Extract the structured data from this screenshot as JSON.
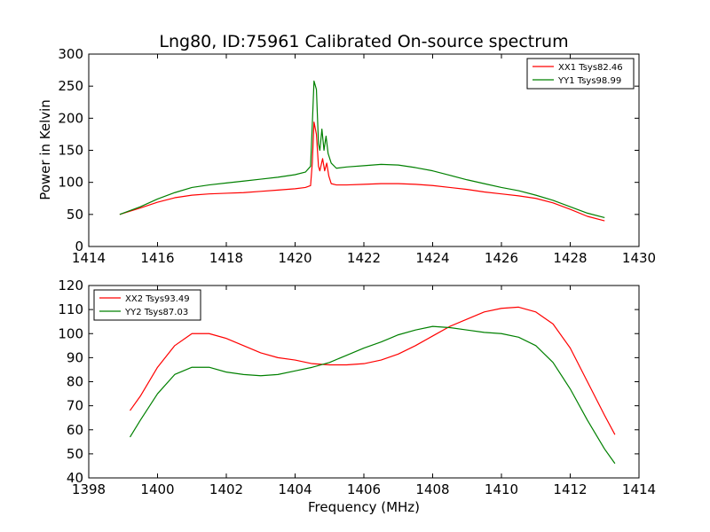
{
  "figure": {
    "title": "Lng80, ID:75961 Calibrated On-source spectrum",
    "ylabel": "Power in Kelvin",
    "xlabel": "Frequency (MHz)"
  },
  "chart_data": [
    {
      "type": "line",
      "title": "Lng80, ID:75961 Calibrated On-source spectrum",
      "xlabel": "",
      "ylabel": "Power in Kelvin",
      "xlim": [
        1414,
        1430
      ],
      "ylim": [
        0,
        300
      ],
      "xticks": [
        1414,
        1416,
        1418,
        1420,
        1422,
        1424,
        1426,
        1428,
        1430
      ],
      "yticks": [
        0,
        50,
        100,
        150,
        200,
        250,
        300
      ],
      "grid": false,
      "legend_position": "top-right",
      "series": [
        {
          "name": "XX1 Tsys82.46",
          "color": "#ff0000",
          "points": [
            [
              1414.9,
              50
            ],
            [
              1415.5,
              60
            ],
            [
              1416,
              69
            ],
            [
              1416.5,
              76
            ],
            [
              1417,
              80
            ],
            [
              1417.5,
              82
            ],
            [
              1418,
              83
            ],
            [
              1418.5,
              84
            ],
            [
              1419,
              86
            ],
            [
              1419.5,
              88
            ],
            [
              1420,
              90
            ],
            [
              1420.3,
              92
            ],
            [
              1420.45,
              95
            ],
            [
              1420.5,
              130
            ],
            [
              1420.55,
              194
            ],
            [
              1420.62,
              175
            ],
            [
              1420.68,
              125
            ],
            [
              1420.72,
              118
            ],
            [
              1420.8,
              137
            ],
            [
              1420.86,
              118
            ],
            [
              1420.92,
              130
            ],
            [
              1420.98,
              110
            ],
            [
              1421.05,
              98
            ],
            [
              1421.2,
              96
            ],
            [
              1421.5,
              96
            ],
            [
              1422,
              97
            ],
            [
              1422.5,
              98
            ],
            [
              1423,
              98
            ],
            [
              1423.5,
              97
            ],
            [
              1424,
              95
            ],
            [
              1424.5,
              92
            ],
            [
              1425,
              89
            ],
            [
              1425.5,
              85
            ],
            [
              1426,
              82
            ],
            [
              1426.5,
              79
            ],
            [
              1427,
              75
            ],
            [
              1427.5,
              68
            ],
            [
              1428,
              58
            ],
            [
              1428.5,
              47
            ],
            [
              1429,
              40
            ]
          ]
        },
        {
          "name": "YY1 Tsys98.99",
          "color": "#008000",
          "points": [
            [
              1414.9,
              50
            ],
            [
              1415.5,
              62
            ],
            [
              1416,
              74
            ],
            [
              1416.5,
              84
            ],
            [
              1417,
              92
            ],
            [
              1417.5,
              96
            ],
            [
              1418,
              99
            ],
            [
              1418.5,
              102
            ],
            [
              1419,
              105
            ],
            [
              1419.5,
              108
            ],
            [
              1420,
              112
            ],
            [
              1420.3,
              116
            ],
            [
              1420.45,
              125
            ],
            [
              1420.5,
              190
            ],
            [
              1420.55,
              258
            ],
            [
              1420.62,
              245
            ],
            [
              1420.68,
              160
            ],
            [
              1420.72,
              150
            ],
            [
              1420.78,
              183
            ],
            [
              1420.84,
              150
            ],
            [
              1420.9,
              172
            ],
            [
              1420.96,
              145
            ],
            [
              1421.05,
              130
            ],
            [
              1421.2,
              122
            ],
            [
              1421.5,
              124
            ],
            [
              1422,
              126
            ],
            [
              1422.5,
              128
            ],
            [
              1423,
              127
            ],
            [
              1423.5,
              123
            ],
            [
              1424,
              118
            ],
            [
              1424.5,
              111
            ],
            [
              1425,
              104
            ],
            [
              1425.5,
              98
            ],
            [
              1426,
              92
            ],
            [
              1426.5,
              87
            ],
            [
              1427,
              80
            ],
            [
              1427.5,
              72
            ],
            [
              1428,
              62
            ],
            [
              1428.5,
              52
            ],
            [
              1429,
              45
            ]
          ]
        }
      ]
    },
    {
      "type": "line",
      "title": "",
      "xlabel": "Frequency (MHz)",
      "ylabel": "",
      "xlim": [
        1398,
        1414
      ],
      "ylim": [
        40,
        120
      ],
      "xticks": [
        1398,
        1400,
        1402,
        1404,
        1406,
        1408,
        1410,
        1412,
        1414
      ],
      "yticks": [
        40,
        50,
        60,
        70,
        80,
        90,
        100,
        110,
        120
      ],
      "grid": false,
      "legend_position": "top-left",
      "series": [
        {
          "name": "XX2 Tsys93.49",
          "color": "#ff0000",
          "points": [
            [
              1399.2,
              68
            ],
            [
              1399.5,
              74
            ],
            [
              1400,
              86
            ],
            [
              1400.5,
              95
            ],
            [
              1401,
              100
            ],
            [
              1401.5,
              100
            ],
            [
              1402,
              98
            ],
            [
              1402.5,
              95
            ],
            [
              1403,
              92
            ],
            [
              1403.5,
              90
            ],
            [
              1404,
              89
            ],
            [
              1404.5,
              87.5
            ],
            [
              1405,
              87
            ],
            [
              1405.5,
              87
            ],
            [
              1406,
              87.5
            ],
            [
              1406.5,
              89
            ],
            [
              1407,
              91.5
            ],
            [
              1407.5,
              95
            ],
            [
              1408,
              99
            ],
            [
              1408.5,
              103
            ],
            [
              1409,
              106
            ],
            [
              1409.5,
              109
            ],
            [
              1410,
              110.5
            ],
            [
              1410.5,
              111
            ],
            [
              1411,
              109
            ],
            [
              1411.5,
              104
            ],
            [
              1412,
              94
            ],
            [
              1412.5,
              80
            ],
            [
              1413,
              66
            ],
            [
              1413.3,
              58
            ]
          ]
        },
        {
          "name": "YY2 Tsys87.03",
          "color": "#008000",
          "points": [
            [
              1399.2,
              57
            ],
            [
              1399.5,
              64
            ],
            [
              1400,
              75
            ],
            [
              1400.5,
              83
            ],
            [
              1401,
              86
            ],
            [
              1401.5,
              86
            ],
            [
              1402,
              84
            ],
            [
              1402.5,
              83
            ],
            [
              1403,
              82.5
            ],
            [
              1403.5,
              83
            ],
            [
              1404,
              84.5
            ],
            [
              1404.5,
              86
            ],
            [
              1405,
              88
            ],
            [
              1405.5,
              91
            ],
            [
              1406,
              94
            ],
            [
              1406.5,
              96.5
            ],
            [
              1407,
              99.5
            ],
            [
              1407.5,
              101.5
            ],
            [
              1408,
              103
            ],
            [
              1408.5,
              102.5
            ],
            [
              1409,
              101.5
            ],
            [
              1409.5,
              100.5
            ],
            [
              1410,
              100
            ],
            [
              1410.5,
              98.5
            ],
            [
              1411,
              95
            ],
            [
              1411.5,
              88
            ],
            [
              1412,
              77
            ],
            [
              1412.5,
              64
            ],
            [
              1413,
              52
            ],
            [
              1413.3,
              46
            ]
          ]
        }
      ]
    }
  ]
}
